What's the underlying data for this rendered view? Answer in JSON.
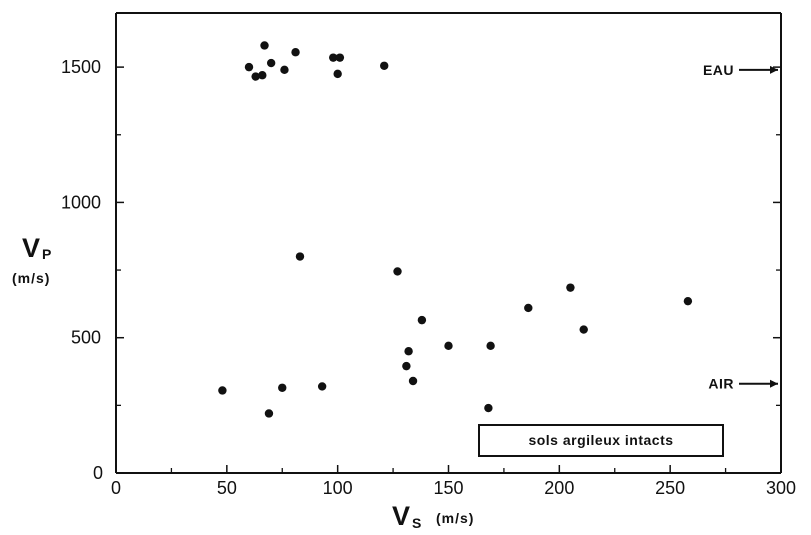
{
  "chart_data": {
    "type": "scatter",
    "x": [
      60,
      63,
      66,
      67,
      70,
      76,
      81,
      98,
      101,
      100,
      121,
      48,
      69,
      75,
      83,
      93,
      127,
      131,
      132,
      134,
      138,
      150,
      168,
      169,
      186,
      205,
      211,
      258
    ],
    "y": [
      1500,
      1465,
      1470,
      1580,
      1515,
      1490,
      1555,
      1535,
      1535,
      1475,
      1505,
      305,
      220,
      315,
      800,
      320,
      745,
      395,
      450,
      340,
      565,
      470,
      240,
      470,
      610,
      685,
      530,
      635
    ],
    "x_ticks": [
      "0",
      "50",
      "100",
      "150",
      "200",
      "250",
      "300"
    ],
    "y_ticks": [
      "0",
      "500",
      "1000",
      "1500"
    ],
    "xlim": [
      0,
      300
    ],
    "ylim": [
      0,
      1700
    ],
    "x_label": "V",
    "x_label_subscript": "S",
    "x_unit": "(m/s)",
    "y_label": "V",
    "y_label_subscript": "P",
    "y_unit": "(m/s)",
    "legend": "sols argileux intacts",
    "annotations": [
      {
        "text": "EAU",
        "y": 1490
      },
      {
        "text": "AIR",
        "y": 330
      }
    ],
    "grid": false
  }
}
